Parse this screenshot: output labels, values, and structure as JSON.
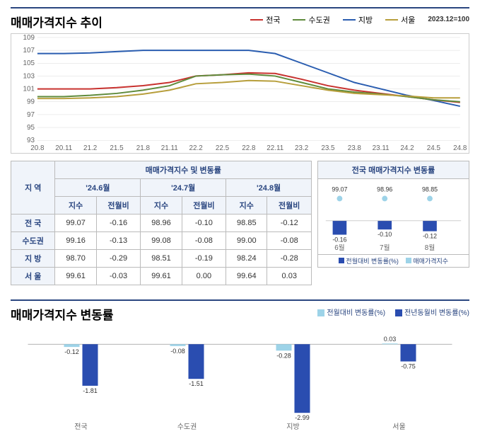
{
  "chart1": {
    "title": "매매가격지수 추이",
    "basenote": "2023.12=100",
    "legend": [
      {
        "label": "전국",
        "color": "#c8322f"
      },
      {
        "label": "수도권",
        "color": "#5f8b3c"
      },
      {
        "label": "지방",
        "color": "#2a5db0"
      },
      {
        "label": "서울",
        "color": "#b79e3b"
      }
    ],
    "ylim": [
      93,
      109
    ],
    "ytick_step": 2,
    "xlabels": [
      "20.8",
      "20.11",
      "21.2",
      "21.5",
      "21.8",
      "21.11",
      "22.2",
      "22.5",
      "22.8",
      "22.11",
      "23.2",
      "23.5",
      "23.8",
      "23.11",
      "24.2",
      "24.5",
      "24.8"
    ],
    "grid_color": "#d8d8d8",
    "series": {
      "jeonguk": [
        101,
        101,
        101,
        101.2,
        101.5,
        102,
        103,
        103.2,
        103.5,
        103.4,
        102.5,
        101.5,
        100.8,
        100.3,
        99.8,
        99.3,
        98.9
      ],
      "sudogwon": [
        99.8,
        99.8,
        100,
        100.3,
        100.8,
        101.5,
        103,
        103.2,
        103.3,
        103,
        102,
        101,
        100.5,
        100.2,
        99.8,
        99.3,
        99.0
      ],
      "jibang": [
        106.5,
        106.5,
        106.6,
        106.8,
        107,
        107,
        107,
        107,
        107,
        106.5,
        105,
        103.5,
        102,
        101,
        100,
        99.2,
        98.3
      ],
      "seoul": [
        99.5,
        99.5,
        99.6,
        99.8,
        100.2,
        100.8,
        101.8,
        102,
        102.3,
        102.2,
        101.5,
        100.8,
        100.3,
        100.1,
        99.9,
        99.6,
        99.6
      ]
    }
  },
  "table": {
    "col_region": "지  역",
    "group_header": "매매가격지수 및 변동률",
    "months": [
      "'24.6월",
      "'24.7월",
      "'24.8월"
    ],
    "sub": [
      "지수",
      "전월비"
    ],
    "rows": [
      {
        "region": "전  국",
        "vals": [
          "99.07",
          "-0.16",
          "98.96",
          "-0.10",
          "98.85",
          "-0.12"
        ]
      },
      {
        "region": "수도권",
        "vals": [
          "99.16",
          "-0.13",
          "99.08",
          "-0.08",
          "99.00",
          "-0.08"
        ]
      },
      {
        "region": "지  방",
        "vals": [
          "98.70",
          "-0.29",
          "98.51",
          "-0.19",
          "98.24",
          "-0.28"
        ]
      },
      {
        "region": "서  울",
        "vals": [
          "99.61",
          "-0.03",
          "99.61",
          "0.00",
          "99.64",
          "0.03"
        ]
      }
    ]
  },
  "minichart": {
    "title": "전국 매매가격지수 변동률",
    "xlabels": [
      "6월",
      "7월",
      "8월"
    ],
    "index_vals": [
      "99.07",
      "98.96",
      "98.85"
    ],
    "change_vals": [
      "-0.16",
      "-0.10",
      "-0.12"
    ],
    "bar_heights": [
      0.16,
      0.1,
      0.12
    ],
    "index_color": "#9dd3e8",
    "bar_color": "#2a4db0",
    "legend": [
      "전월대비 변동률(%)",
      "매매가격지수"
    ]
  },
  "chart2": {
    "title": "매매가격지수 변동률",
    "legend": [
      {
        "label": "전월대비 변동률(%)",
        "color": "#9dd3e8"
      },
      {
        "label": "전년동월비 변동률(%)",
        "color": "#2a4db0"
      }
    ],
    "categories": [
      "전국",
      "수도권",
      "지방",
      "서울"
    ],
    "mom": [
      -0.12,
      -0.08,
      -0.28,
      0.03
    ],
    "yoy": [
      -1.81,
      -1.51,
      -2.99,
      -0.75
    ],
    "mom_color": "#9dd3e8",
    "yoy_color": "#2a4db0",
    "ymax": 0.5,
    "ymin": -3.2
  }
}
